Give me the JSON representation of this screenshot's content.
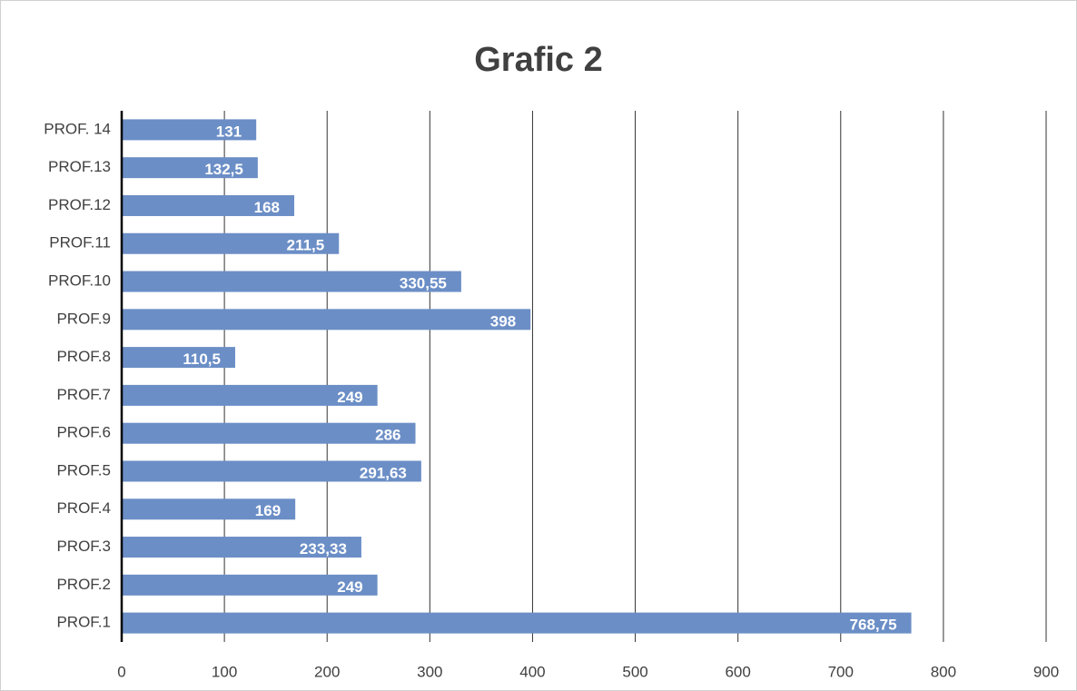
{
  "chart_data": {
    "type": "barh",
    "title": "Grafic 2",
    "categories": [
      "PROF.1",
      "PROF.2",
      "PROF.3",
      "PROF.4",
      "PROF.5",
      "PROF.6",
      "PROF.7",
      "PROF.8",
      "PROF.9",
      "PROF.10",
      "PROF.11",
      "PROF.12",
      "PROF.13",
      "PROF. 14"
    ],
    "values": [
      768.75,
      249,
      233.33,
      169,
      291.63,
      286,
      249,
      110.5,
      398,
      330.55,
      211.5,
      168,
      132.5,
      131
    ],
    "value_labels": [
      "768,75",
      "249",
      "233,33",
      "169",
      "291,63",
      "286",
      "249",
      "110,5",
      "398",
      "330,55",
      "211,5",
      "168",
      "132,5",
      "131"
    ],
    "color": "#6b8ec6",
    "xlim": [
      0,
      900
    ],
    "xticks": [
      0,
      100,
      200,
      300,
      400,
      500,
      600,
      700,
      800,
      900
    ],
    "grid": true
  }
}
